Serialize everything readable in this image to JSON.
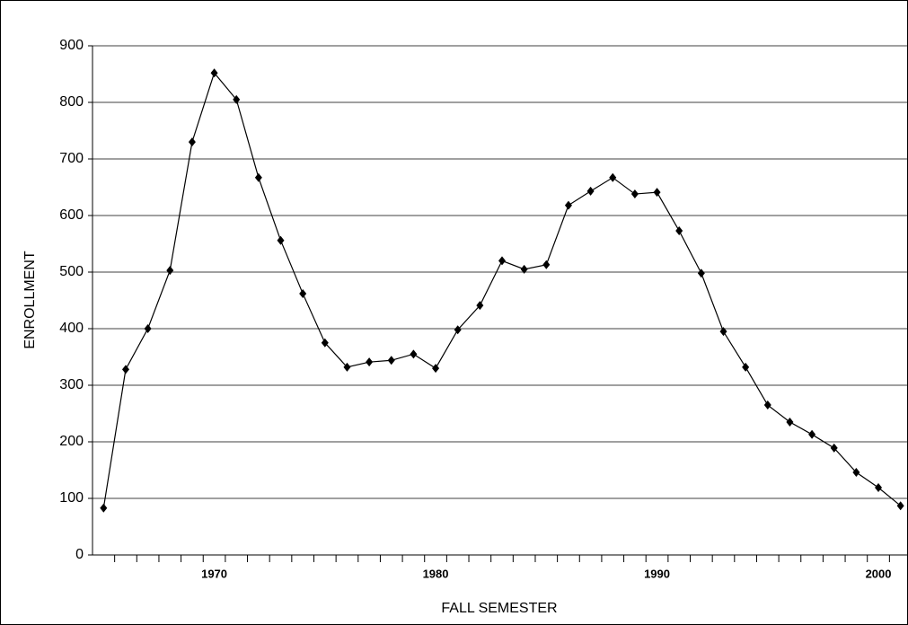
{
  "chart_data": {
    "type": "line",
    "x_label": "FALL SEMESTER",
    "y_label": "ENROLLMENT",
    "x": [
      1965,
      1966,
      1967,
      1968,
      1969,
      1970,
      1971,
      1972,
      1973,
      1974,
      1975,
      1976,
      1977,
      1978,
      1979,
      1980,
      1981,
      1982,
      1983,
      1984,
      1985,
      1986,
      1987,
      1988,
      1989,
      1990,
      1991,
      1992,
      1993,
      1994,
      1995,
      1996,
      1997,
      1998,
      1999,
      2000,
      2001
    ],
    "series": [
      {
        "name": "Enrollment",
        "color": "#000000",
        "values": [
          83,
          328,
          400,
          503,
          730,
          852,
          805,
          667,
          556,
          462,
          375,
          332,
          341,
          344,
          355,
          330,
          398,
          441,
          520,
          505,
          513,
          618,
          643,
          667,
          638,
          641,
          573,
          498,
          395,
          332,
          265,
          235,
          213,
          189,
          146,
          119,
          87
        ]
      }
    ],
    "xlim": [
      1964.5,
      2001.5
    ],
    "xticks": [
      1970,
      1980,
      1990,
      2000
    ],
    "ylim": [
      0,
      900
    ],
    "yticks": [
      0,
      100,
      200,
      300,
      400,
      500,
      600,
      700,
      800,
      900
    ],
    "grid": true
  }
}
